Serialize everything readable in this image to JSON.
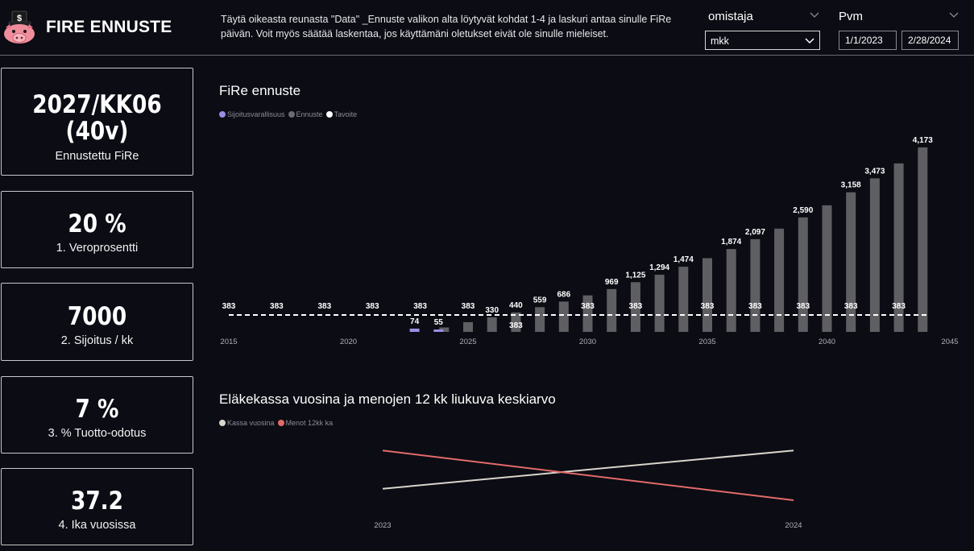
{
  "header": {
    "title": "FIRE ENNUSTE",
    "instructions": "Täytä oikeasta reunasta \"Data\" _Ennuste valikon alta löytyvät kohdat 1-4 ja laskuri antaa sinulle FiRe päivän. Voit myös säätää laskentaa, jos käyttämäni oletukset eivät ole sinulle mieleiset.",
    "owner_slicer": {
      "label": "omistaja",
      "value": "mkk"
    },
    "date_slicer": {
      "label": "Pvm",
      "start": "1/1/2023",
      "end": "2/28/2024"
    }
  },
  "cards": [
    {
      "value": "2027/KK06",
      "value2": "(40v)",
      "label": "Ennustettu FiRe"
    },
    {
      "value": "20 %",
      "label": "1. Veroprosentti"
    },
    {
      "value": "7000",
      "label": "2. Sijoitus / kk"
    },
    {
      "value": "7 %",
      "label": "3. % Tuotto-odotus"
    },
    {
      "value": "37.2",
      "label": "4. Ika vuosissa"
    }
  ],
  "colors": {
    "background": "#0b0c14",
    "investment": "#9b8ce6",
    "forecast": "#5f5f63",
    "target": "#ffffff",
    "pension": "#d9d5cc",
    "expenses": "#e46a6a"
  },
  "chart_data": [
    {
      "type": "bar",
      "title": "FiRe ennuste",
      "legend": [
        "Sijoitusvarallisuus",
        "Ennuste",
        "Tavoite"
      ],
      "x_ticks": [
        "2015",
        "2020",
        "2025",
        "2030",
        "2035",
        "2040",
        "2045"
      ],
      "xlim": [
        2015,
        2045
      ],
      "ylim": [
        0,
        4300
      ],
      "series": [
        {
          "name": "Sijoitusvarallisuus",
          "x": [
            2023,
            2024
          ],
          "values": [
            74,
            55
          ],
          "labels": [
            "74",
            "55"
          ]
        },
        {
          "name": "Ennuste",
          "x": [
            2024,
            2025,
            2026,
            2027,
            2028,
            2029,
            2030,
            2031,
            2032,
            2033,
            2034,
            2035,
            2036,
            2037,
            2038,
            2039,
            2040,
            2041,
            2042,
            2043,
            2044
          ],
          "values": [
            100,
            220,
            330,
            440,
            559,
            686,
            826,
            969,
            1125,
            1294,
            1474,
            1668,
            1874,
            2097,
            2336,
            2590,
            2863,
            3158,
            3473,
            3811,
            4173
          ],
          "labels": [
            "",
            "",
            "330",
            "440",
            "559",
            "686",
            "",
            "969",
            "1,125",
            "1,294",
            "1,474",
            "",
            "1,874",
            "2,097",
            "",
            "2,590",
            "",
            "3,158",
            "3,473",
            "",
            "4,173"
          ]
        },
        {
          "name": "Tavoite",
          "value": 383,
          "label_points": [
            {
              "x": 2015,
              "label": "383"
            },
            {
              "x": 2017,
              "label": "383"
            },
            {
              "x": 2019,
              "label": "383"
            },
            {
              "x": 2021,
              "label": "383"
            },
            {
              "x": 2023,
              "label": "383"
            },
            {
              "x": 2025,
              "label": "383"
            },
            {
              "x": 2030,
              "label": "383"
            },
            {
              "x": 2032,
              "label": "383"
            },
            {
              "x": 2035,
              "label": "383"
            },
            {
              "x": 2037,
              "label": "383"
            },
            {
              "x": 2039,
              "label": "383"
            },
            {
              "x": 2041,
              "label": "383"
            },
            {
              "x": 2043,
              "label": "383"
            }
          ],
          "below_label": {
            "x": 2027,
            "label": "383"
          }
        }
      ]
    },
    {
      "type": "line",
      "title": "Eläkekassa vuosina ja menojen 12 kk liukuva keskiarvo",
      "legend": [
        "Kassa vuosina",
        "Menot 12kk ka"
      ],
      "categories": [
        "2023",
        "2024"
      ],
      "series": [
        {
          "name": "Kassa vuosina",
          "values": [
            0.35,
            0.85
          ]
        },
        {
          "name": "Menot 12kk ka",
          "values": [
            0.85,
            0.2
          ]
        }
      ]
    }
  ]
}
